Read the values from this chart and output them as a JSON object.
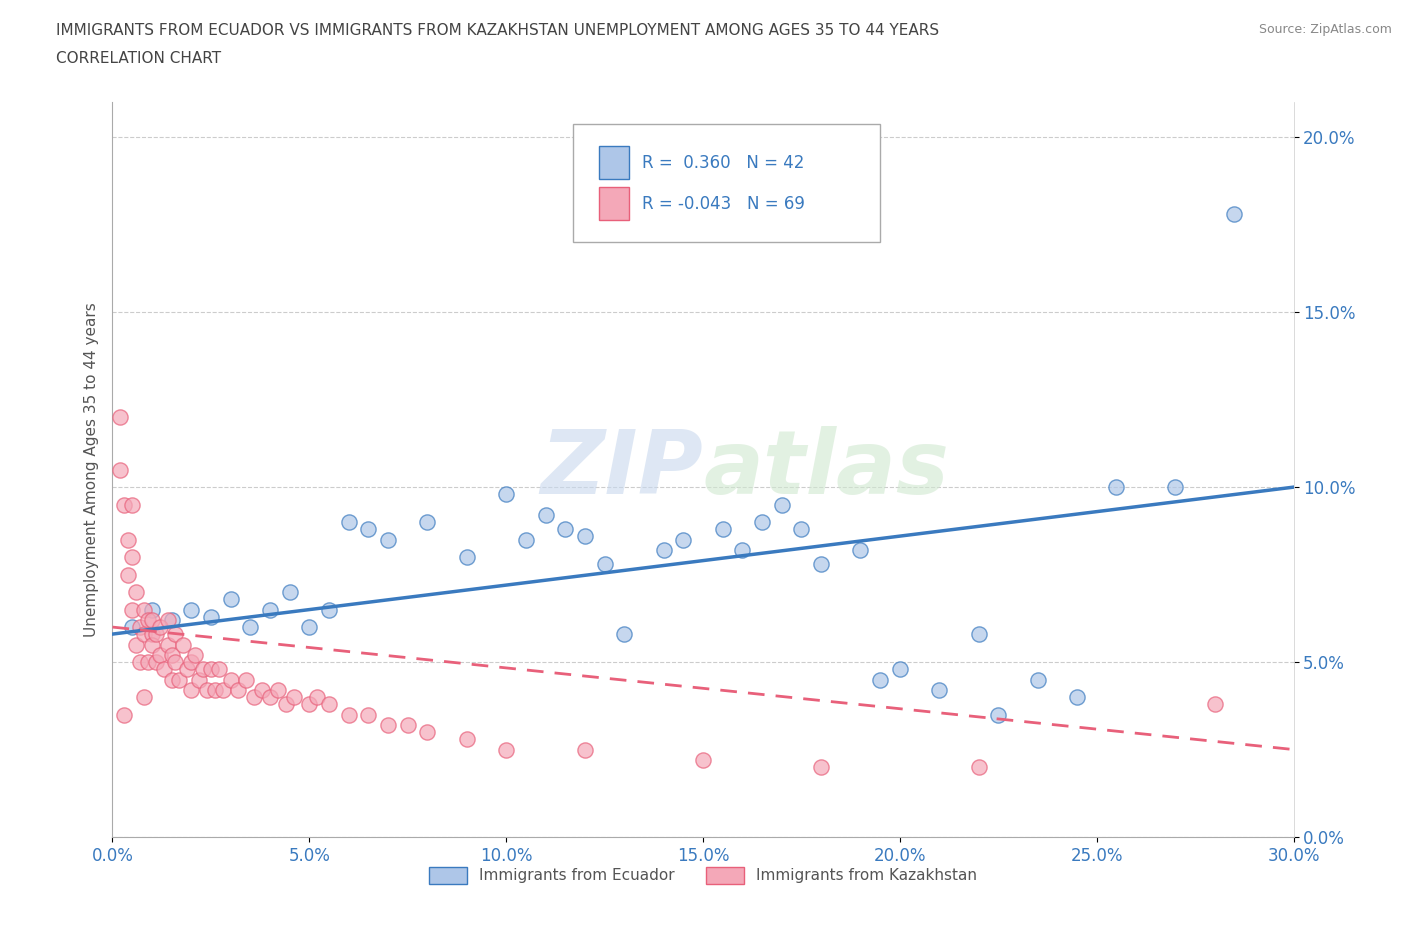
{
  "title_line1": "IMMIGRANTS FROM ECUADOR VS IMMIGRANTS FROM KAZAKHSTAN UNEMPLOYMENT AMONG AGES 35 TO 44 YEARS",
  "title_line2": "CORRELATION CHART",
  "source_text": "Source: ZipAtlas.com",
  "ylabel": "Unemployment Among Ages 35 to 44 years",
  "watermark": "ZIPatlas",
  "legend1_label": "Immigrants from Ecuador",
  "legend2_label": "Immigrants from Kazakhstan",
  "r_ecuador": "0.360",
  "n_ecuador": "42",
  "r_kazakhstan": "-0.043",
  "n_kazakhstan": "69",
  "ecuador_color": "#aec6e8",
  "kazakhstan_color": "#f4a8b8",
  "ecuador_line_color": "#3a7abf",
  "kazakhstan_line_color": "#e8607a",
  "background_color": "#ffffff",
  "xlim": [
    0.0,
    0.3
  ],
  "ylim": [
    0.0,
    0.21
  ],
  "yticks": [
    0.0,
    0.05,
    0.1,
    0.15,
    0.2
  ],
  "xticks": [
    0.0,
    0.05,
    0.1,
    0.15,
    0.2,
    0.25,
    0.3
  ],
  "ecuador_trend_x": [
    0.0,
    0.3
  ],
  "ecuador_trend_y": [
    0.058,
    0.1
  ],
  "kazakhstan_trend_x": [
    0.0,
    0.3
  ],
  "kazakhstan_trend_y": [
    0.06,
    0.025
  ]
}
